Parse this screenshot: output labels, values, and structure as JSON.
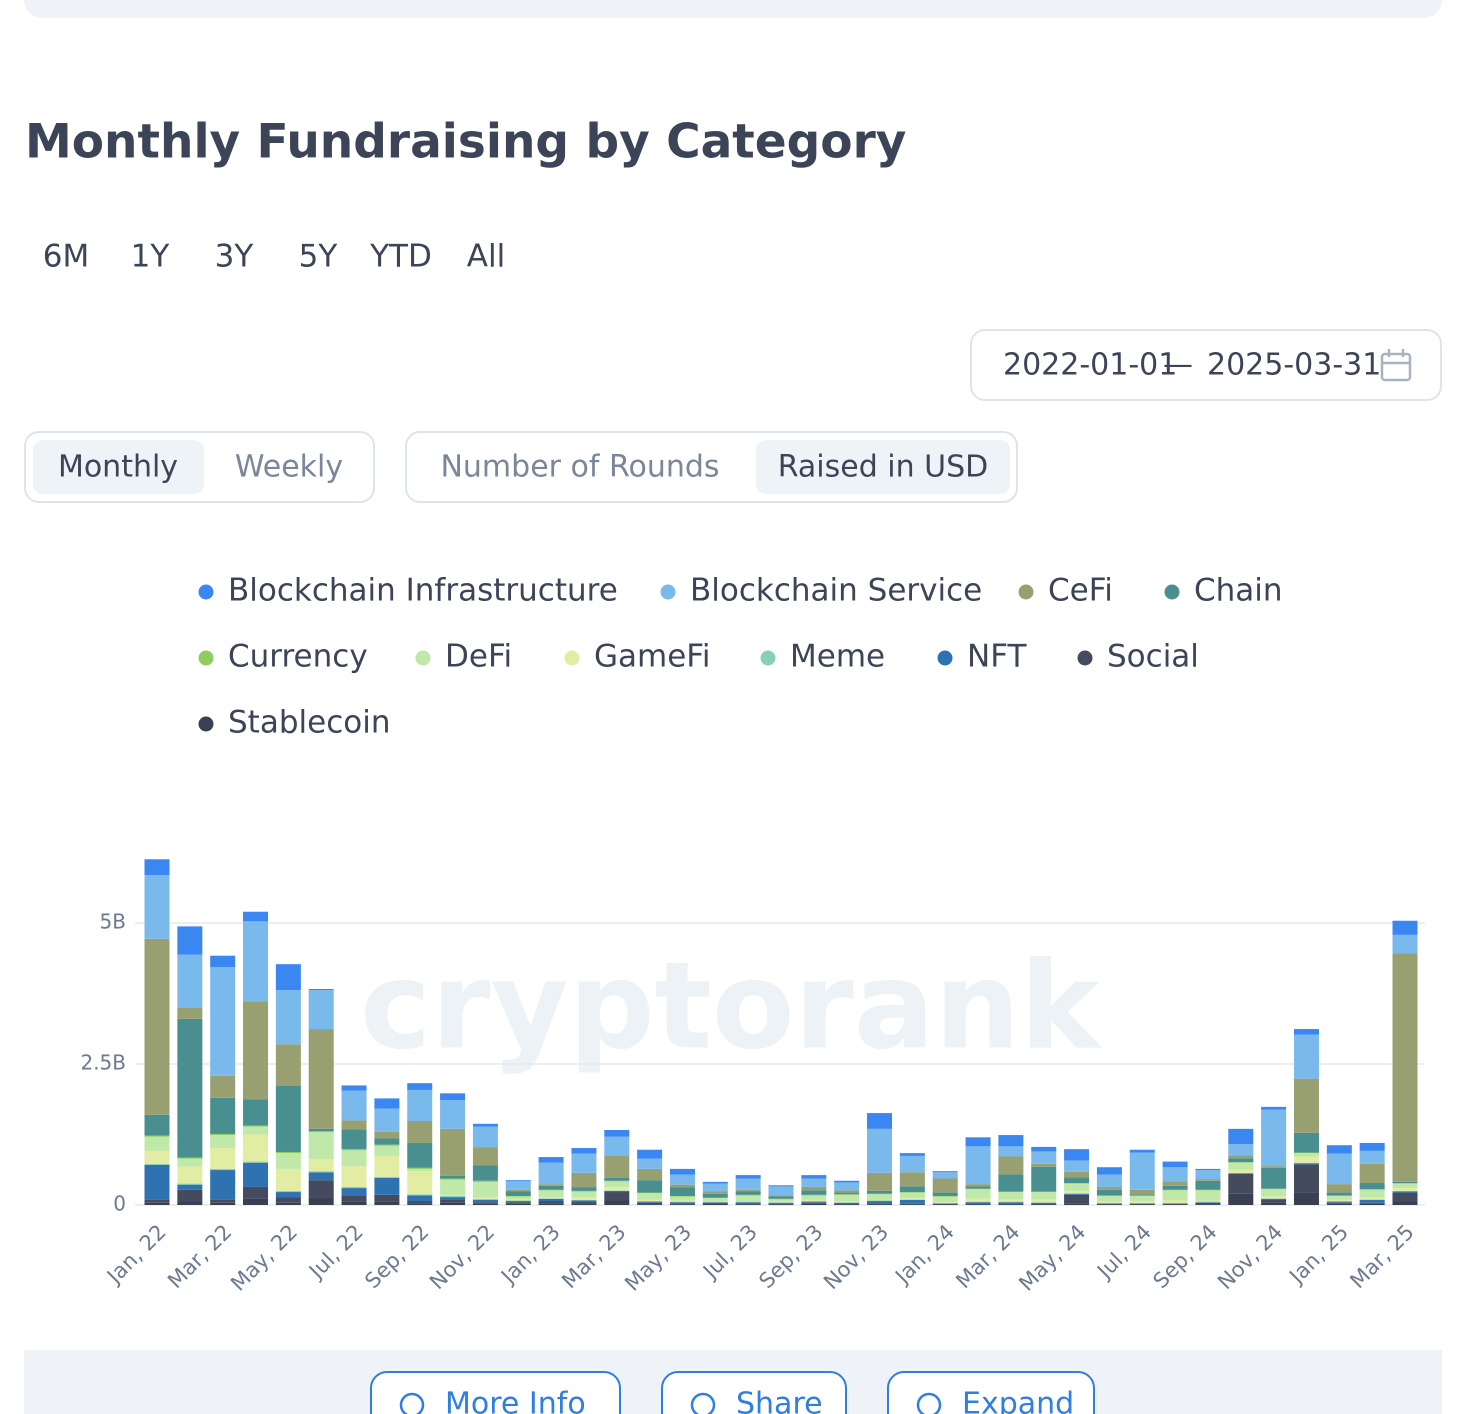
{
  "title": "Monthly Fundraising by Category",
  "range_buttons": [
    "6M",
    "1Y",
    "3Y",
    "5Y",
    "YTD",
    "All"
  ],
  "date_range": {
    "start": "2022-01-01",
    "separator": "—",
    "end": "2025-03-31"
  },
  "period_toggle": [
    "Monthly",
    "Weekly"
  ],
  "metric_toggle": [
    "Number of Rounds",
    "Raised in USD"
  ],
  "buttons": [
    "More Info",
    "Share",
    "Expand"
  ],
  "chart_data": {
    "type": "stacked_bar",
    "watermark": "cryptorank",
    "categories": [
      "Jan, 22",
      null,
      "Mar, 22",
      null,
      "May, 22",
      null,
      "Jul, 22",
      null,
      "Sep, 22",
      null,
      "Nov, 22",
      null,
      "Jan, 23",
      null,
      "Mar, 23",
      null,
      "May, 23",
      null,
      "Jul, 23",
      null,
      "Sep, 23",
      null,
      "Nov, 23",
      null,
      "Jan, 24",
      null,
      "Mar, 24",
      null,
      "May, 24",
      null,
      "Jul, 24",
      null,
      "Sep, 24",
      null,
      "Nov, 24",
      null,
      "Jan, 25",
      null,
      "Mar, 25"
    ],
    "ylim": [
      0,
      6.2
    ],
    "yticks": [
      {
        "value": 0,
        "label": "0"
      },
      {
        "value": 2.5,
        "label": "2.5B"
      },
      {
        "value": 5,
        "label": "5B"
      }
    ],
    "grid": true,
    "series": [
      {
        "name": "Blockchain Infrastructure",
        "color": "#3b87f2",
        "values": [
          0.28,
          0.5,
          0.2,
          0.17,
          0.46,
          0.02,
          0.09,
          0.18,
          0.12,
          0.12,
          0.05,
          0.02,
          0.1,
          0.1,
          0.12,
          0.16,
          0.1,
          0.03,
          0.06,
          0.02,
          0.06,
          0.03,
          0.28,
          0.05,
          0.02,
          0.16,
          0.2,
          0.08,
          0.2,
          0.13,
          0.05,
          0.1,
          0.02,
          0.27,
          0.05,
          0.1,
          0.15,
          0.14,
          0.25
        ]
      },
      {
        "name": "Blockchain Service",
        "color": "#7ab9ec",
        "values": [
          1.13,
          0.94,
          1.93,
          1.42,
          0.96,
          0.69,
          0.53,
          0.41,
          0.55,
          0.51,
          0.37,
          0.15,
          0.38,
          0.34,
          0.33,
          0.18,
          0.18,
          0.14,
          0.2,
          0.16,
          0.15,
          0.14,
          0.78,
          0.29,
          0.11,
          0.67,
          0.18,
          0.22,
          0.2,
          0.22,
          0.66,
          0.25,
          0.16,
          0.2,
          1.0,
          0.78,
          0.54,
          0.23,
          0.33
        ]
      },
      {
        "name": "CeFi",
        "color": "#98a072",
        "values": [
          3.12,
          0.2,
          0.39,
          1.74,
          0.74,
          1.77,
          0.16,
          0.12,
          0.39,
          0.83,
          0.32,
          0.03,
          0.03,
          0.26,
          0.4,
          0.2,
          0.05,
          0.04,
          0.03,
          0.02,
          0.06,
          0.04,
          0.32,
          0.25,
          0.25,
          0.04,
          0.32,
          0.05,
          0.1,
          0.05,
          0.08,
          0.08,
          0.03,
          0.05,
          0.03,
          0.96,
          0.15,
          0.34,
          4.05
        ]
      },
      {
        "name": "Chain",
        "color": "#4a8f8f",
        "values": [
          0.37,
          2.46,
          0.64,
          0.46,
          1.17,
          0.04,
          0.35,
          0.11,
          0.44,
          0.05,
          0.27,
          0.08,
          0.07,
          0.06,
          0.05,
          0.22,
          0.15,
          0.07,
          0.06,
          0.04,
          0.08,
          0.03,
          0.05,
          0.1,
          0.06,
          0.04,
          0.3,
          0.44,
          0.1,
          0.1,
          0.02,
          0.07,
          0.16,
          0.07,
          0.37,
          0.35,
          0.05,
          0.11,
          0.02
        ]
      },
      {
        "name": "Currency",
        "color": "#8fcd5c",
        "values": [
          0.02,
          0.02,
          0.02,
          0.02,
          0.02,
          0.02,
          0.02,
          0.02,
          0.02,
          0.02,
          0.02,
          0.01,
          0.01,
          0.01,
          0.01,
          0.01,
          0.01,
          0.01,
          0.01,
          0.01,
          0.01,
          0.01,
          0.01,
          0.01,
          0.01,
          0.01,
          0.01,
          0.01,
          0.01,
          0.01,
          0.01,
          0.01,
          0.01,
          0.01,
          0.01,
          0.01,
          0.01,
          0.01,
          0.01
        ]
      },
      {
        "name": "DeFi",
        "color": "#bfe8a9",
        "values": [
          0.25,
          0.14,
          0.23,
          0.14,
          0.28,
          0.48,
          0.28,
          0.18,
          0.04,
          0.27,
          0.28,
          0.05,
          0.12,
          0.1,
          0.1,
          0.12,
          0.07,
          0.05,
          0.1,
          0.04,
          0.08,
          0.11,
          0.1,
          0.1,
          0.1,
          0.17,
          0.13,
          0.13,
          0.13,
          0.1,
          0.09,
          0.18,
          0.18,
          0.12,
          0.12,
          0.06,
          0.07,
          0.14,
          0.08
        ]
      },
      {
        "name": "GameFi",
        "color": "#e2eca3",
        "values": [
          0.23,
          0.3,
          0.37,
          0.48,
          0.39,
          0.21,
          0.37,
          0.37,
          0.41,
          0.02,
          0.02,
          0.02,
          0.02,
          0.05,
          0.06,
          0.02,
          0.02,
          0.01,
          0.01,
          0.01,
          0.02,
          0.02,
          0.01,
          0.02,
          0.01,
          0.05,
          0.04,
          0.05,
          0.04,
          0.02,
          0.03,
          0.04,
          0.02,
          0.06,
          0.04,
          0.11,
          0.02,
          0.03,
          0.05
        ]
      },
      {
        "name": "Meme",
        "color": "#88cfb8",
        "values": [
          0.02,
          0.02,
          0.02,
          0.02,
          0.02,
          0.02,
          0.02,
          0.02,
          0.02,
          0.02,
          0.02,
          0.01,
          0.01,
          0.01,
          0.01,
          0.01,
          0.01,
          0.01,
          0.01,
          0.01,
          0.01,
          0.01,
          0.01,
          0.01,
          0.01,
          0.01,
          0.01,
          0.01,
          0.01,
          0.01,
          0.01,
          0.01,
          0.01,
          0.01,
          0.01,
          0.01,
          0.01,
          0.01,
          0.01
        ]
      },
      {
        "name": "NFT",
        "color": "#2f72b2",
        "values": [
          0.62,
          0.09,
          0.53,
          0.43,
          0.09,
          0.14,
          0.14,
          0.3,
          0.1,
          0.04,
          0.04,
          0.02,
          0.04,
          0.02,
          0.02,
          0.02,
          0.02,
          0.01,
          0.02,
          0.02,
          0.02,
          0.01,
          0.04,
          0.07,
          0.01,
          0.02,
          0.02,
          0.01,
          0.02,
          0.01,
          0.01,
          0.01,
          0.01,
          0.01,
          0.01,
          0.02,
          0.02,
          0.05,
          0.02
        ]
      },
      {
        "name": "Social",
        "color": "#444b5f",
        "values": [
          0.05,
          0.2,
          0.05,
          0.2,
          0.1,
          0.3,
          0.1,
          0.12,
          0.05,
          0.06,
          0.03,
          0.03,
          0.04,
          0.03,
          0.15,
          0.03,
          0.02,
          0.02,
          0.02,
          0.01,
          0.02,
          0.02,
          0.02,
          0.01,
          0.01,
          0.02,
          0.02,
          0.02,
          0.16,
          0.01,
          0.01,
          0.01,
          0.03,
          0.35,
          0.05,
          0.5,
          0.02,
          0.02,
          0.15
        ]
      },
      {
        "name": "Stablecoin",
        "color": "#3a4052",
        "values": [
          0.04,
          0.07,
          0.04,
          0.12,
          0.04,
          0.14,
          0.06,
          0.06,
          0.02,
          0.04,
          0.02,
          0.02,
          0.03,
          0.03,
          0.08,
          0.01,
          0.01,
          0.02,
          0.01,
          0.01,
          0.02,
          0.01,
          0.01,
          0.01,
          0.01,
          0.01,
          0.01,
          0.01,
          0.02,
          0.01,
          0.01,
          0.01,
          0.01,
          0.2,
          0.05,
          0.22,
          0.02,
          0.02,
          0.07
        ]
      }
    ]
  }
}
